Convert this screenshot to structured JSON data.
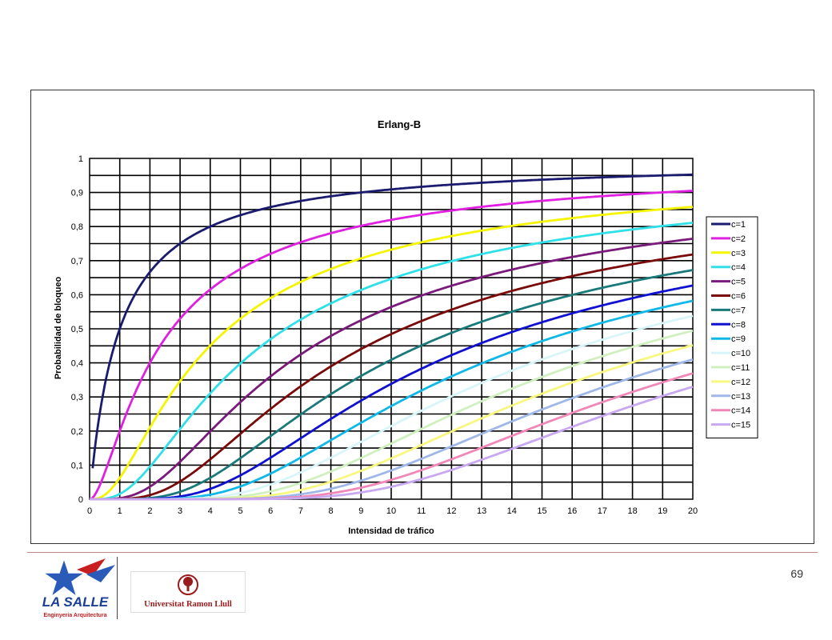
{
  "page_number": "69",
  "logos": {
    "lasalle": "LA SALLE",
    "lasalle_sub": "Enginyeria Arquitectura",
    "url": "Universitat Ramon Llull"
  },
  "chart_data": {
    "type": "line",
    "title": "Erlang-B",
    "xlabel": "Intensidad de tráfico",
    "ylabel": "Probabilidad de bloqueo",
    "xlim": [
      0,
      20
    ],
    "ylim": [
      0,
      1
    ],
    "grid": true,
    "legend_position": "right",
    "x_ticks": [
      "0",
      "1",
      "2",
      "3",
      "4",
      "5",
      "6",
      "7",
      "8",
      "9",
      "10",
      "11",
      "12",
      "13",
      "14",
      "15",
      "16",
      "17",
      "18",
      "19",
      "20"
    ],
    "y_ticks": [
      "0",
      "0,1",
      "0,2",
      "0,3",
      "0,4",
      "0,5",
      "0,6",
      "0,7",
      "0,8",
      "0,9",
      "1"
    ],
    "series": [
      {
        "name": "c=1",
        "c": 1,
        "color": "#1a1a6e"
      },
      {
        "name": "c=2",
        "c": 2,
        "color": "#e020e0"
      },
      {
        "name": "c=3",
        "c": 3,
        "color": "#f5f500"
      },
      {
        "name": "c=4",
        "c": 4,
        "color": "#30e0e8"
      },
      {
        "name": "c=5",
        "c": 5,
        "color": "#7a1a7a"
      },
      {
        "name": "c=6",
        "c": 6,
        "color": "#7a0a0a"
      },
      {
        "name": "c=7",
        "c": 7,
        "color": "#1a7a7a"
      },
      {
        "name": "c=8",
        "c": 8,
        "color": "#1010d0"
      },
      {
        "name": "c=9",
        "c": 9,
        "color": "#10b8e8"
      },
      {
        "name": "c=10",
        "c": 10,
        "color": "#d8f6fa"
      },
      {
        "name": "c=11",
        "c": 11,
        "color": "#d0f0c0"
      },
      {
        "name": "c=12",
        "c": 12,
        "color": "#f8f880"
      },
      {
        "name": "c=13",
        "c": 13,
        "color": "#a0b8e8"
      },
      {
        "name": "c=14",
        "c": 14,
        "color": "#f088b8"
      },
      {
        "name": "c=15",
        "c": 15,
        "color": "#c8a8f0"
      }
    ]
  }
}
